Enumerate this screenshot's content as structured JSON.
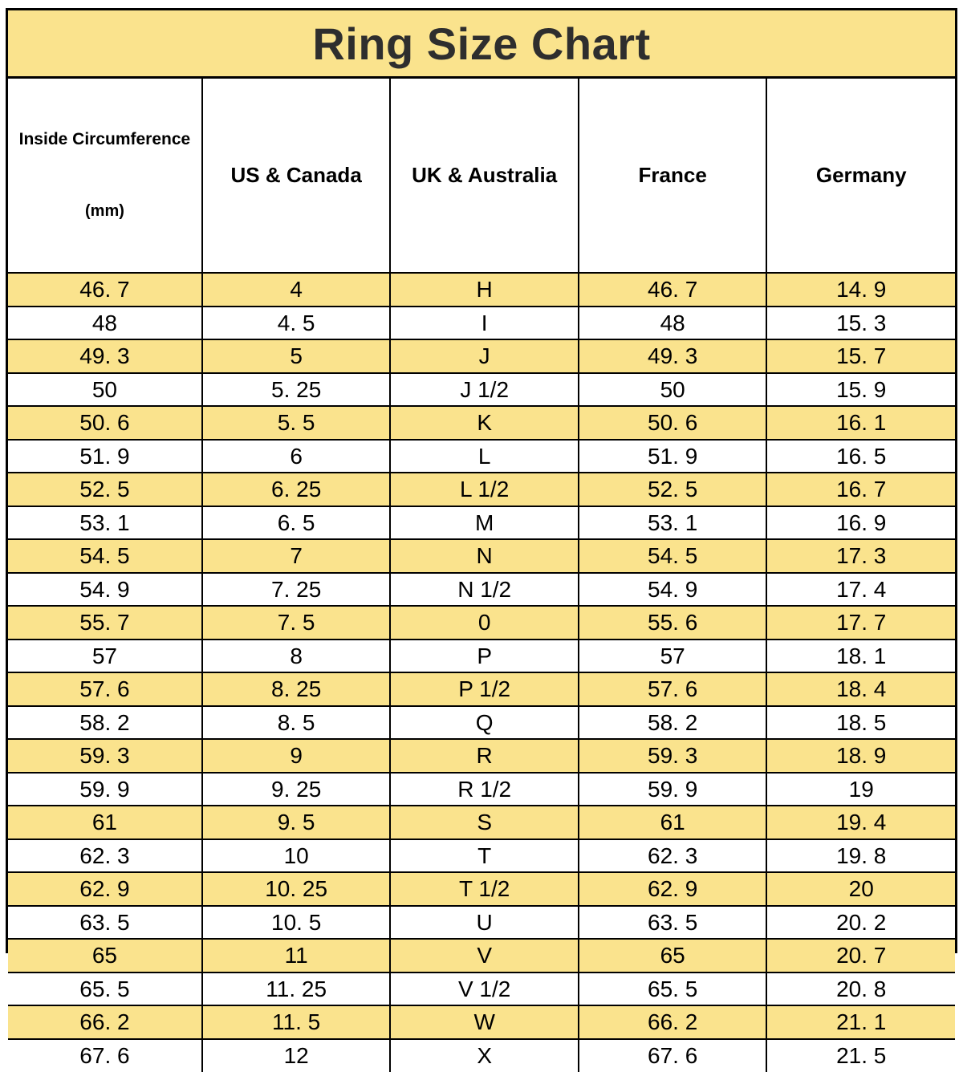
{
  "page": {
    "title": "Ring Size Chart"
  },
  "colors": {
    "accent_yellow": "#FAE38D",
    "border_black": "#000000",
    "background_white": "#FFFFFF",
    "title_text": "#2E2E2E"
  },
  "header": {
    "columns": [
      {
        "line1": "Inside Circumference",
        "line2": "(mm)"
      },
      {
        "line1": "US & Canada"
      },
      {
        "line1": "UK & Australia"
      },
      {
        "line1": "France"
      },
      {
        "line1": "Germany"
      }
    ]
  },
  "chart_data": {
    "type": "table",
    "title": "Ring Size Chart",
    "columns": [
      "Inside Circumference (mm)",
      "US & Canada",
      "UK & Australia",
      "France",
      "Germany"
    ],
    "rows": [
      [
        "46. 7",
        "4",
        "H",
        "46. 7",
        "14. 9"
      ],
      [
        "48",
        "4. 5",
        "I",
        "48",
        "15. 3"
      ],
      [
        "49. 3",
        "5",
        "J",
        "49. 3",
        "15. 7"
      ],
      [
        "50",
        "5. 25",
        "J 1/2",
        "50",
        "15. 9"
      ],
      [
        "50. 6",
        "5. 5",
        "K",
        "50. 6",
        "16. 1"
      ],
      [
        "51. 9",
        "6",
        "L",
        "51. 9",
        "16. 5"
      ],
      [
        "52. 5",
        "6. 25",
        "L 1/2",
        "52. 5",
        "16. 7"
      ],
      [
        "53. 1",
        "6. 5",
        "M",
        "53. 1",
        "16. 9"
      ],
      [
        "54. 5",
        "7",
        "N",
        "54. 5",
        "17. 3"
      ],
      [
        "54. 9",
        "7. 25",
        "N 1/2",
        "54. 9",
        "17. 4"
      ],
      [
        "55. 7",
        "7. 5",
        "0",
        "55. 6",
        "17. 7"
      ],
      [
        "57",
        "8",
        "P",
        "57",
        "18. 1"
      ],
      [
        "57. 6",
        "8. 25",
        "P 1/2",
        "57. 6",
        "18. 4"
      ],
      [
        "58. 2",
        "8. 5",
        "Q",
        "58. 2",
        "18. 5"
      ],
      [
        "59. 3",
        "9",
        "R",
        "59. 3",
        "18. 9"
      ],
      [
        "59. 9",
        "9. 25",
        "R 1/2",
        "59. 9",
        "19"
      ],
      [
        "61",
        "9. 5",
        "S",
        "61",
        "19. 4"
      ],
      [
        "62. 3",
        "10",
        "T",
        "62. 3",
        "19. 8"
      ],
      [
        "62. 9",
        "10. 25",
        "T 1/2",
        "62. 9",
        "20"
      ],
      [
        "63. 5",
        "10. 5",
        "U",
        "63. 5",
        "20. 2"
      ],
      [
        "65",
        "11",
        "V",
        "65",
        "20. 7"
      ],
      [
        "65. 5",
        "11. 25",
        "V 1/2",
        "65. 5",
        "20. 8"
      ],
      [
        "66. 2",
        "11. 5",
        "W",
        "66. 2",
        "21. 1"
      ],
      [
        "67. 6",
        "12",
        "X",
        "67. 6",
        "21. 5"
      ]
    ],
    "row_striping": "rows 1,3,5,... yellow; rows 2,4,6,... white",
    "grid": true,
    "legend_position": "none"
  }
}
